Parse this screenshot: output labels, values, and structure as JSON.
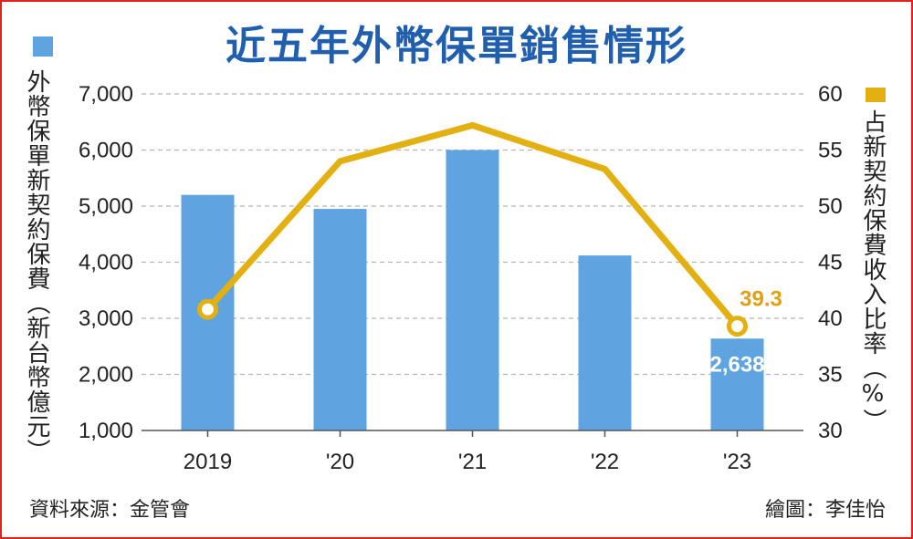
{
  "title": "近五年外幣保單銷售情形",
  "footer": {
    "source": "資料來源：金管會",
    "credit": "繪圖：李佳怡"
  },
  "colors": {
    "bar": "#5fa3e0",
    "line": "#e2b011",
    "title": "#1f5fae",
    "frame": "#e0241b"
  },
  "chart_data": {
    "type": "bar",
    "categories": [
      "2019",
      "'20",
      "'21",
      "'22",
      "'23"
    ],
    "series": [
      {
        "name": "外幣保單新契約保費（新台幣億元）",
        "type": "bar",
        "axis": "left",
        "values": [
          5200,
          4950,
          6000,
          4120,
          2638
        ]
      },
      {
        "name": "占新契約保費收入比率（%）",
        "type": "line",
        "axis": "right",
        "values": [
          40.8,
          54.0,
          57.2,
          53.3,
          39.3
        ]
      }
    ],
    "ylabel": "外幣保單新契約保費（新台幣億元）",
    "y2label": "占新契約保費收入比率（%）",
    "ylim": [
      1000,
      7000
    ],
    "y_ticks": [
      "1,000",
      "2,000",
      "3,000",
      "4,000",
      "5,000",
      "6,000",
      "7,000"
    ],
    "y2lim": [
      30,
      60
    ],
    "y2_ticks": [
      "30",
      "35",
      "40",
      "45",
      "50",
      "55",
      "60"
    ],
    "grid": true,
    "annotations": [
      {
        "series": 0,
        "index": 4,
        "text": "2,638"
      },
      {
        "series": 1,
        "index": 4,
        "text": "39.3"
      }
    ]
  }
}
